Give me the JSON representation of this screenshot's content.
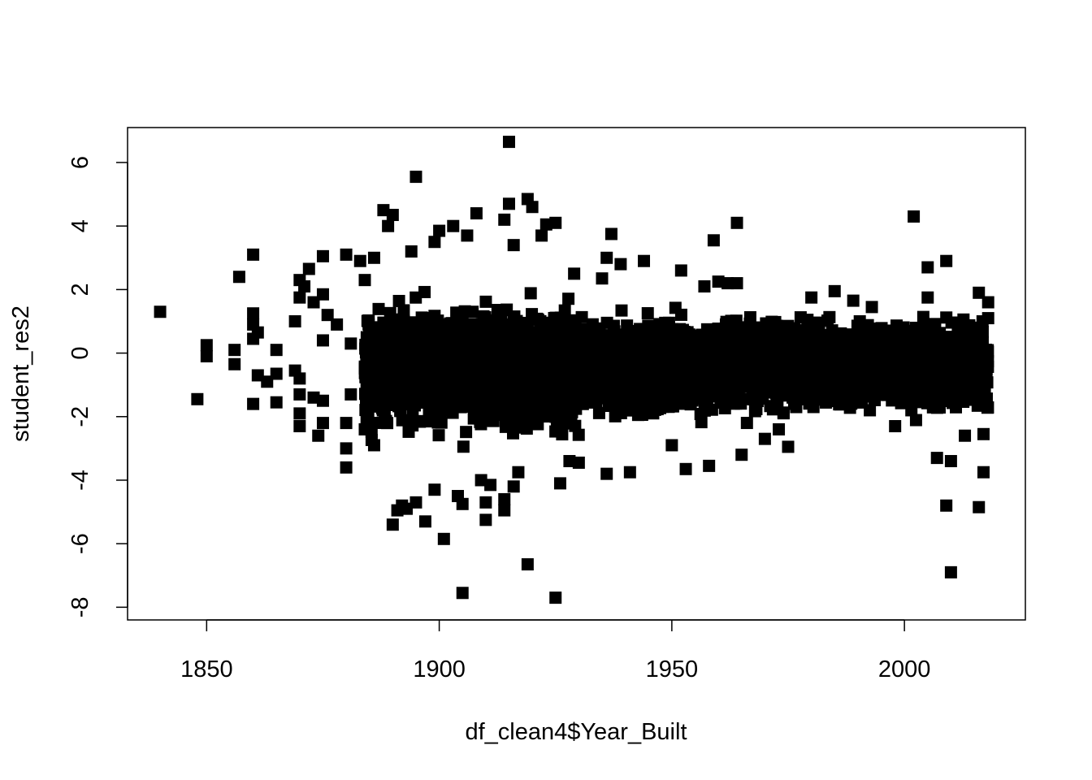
{
  "chart_data": {
    "type": "scatter",
    "xlabel": "df_clean4$Year_Built",
    "ylabel": "student_res2",
    "xlim": [
      1833,
      2026
    ],
    "ylim": [
      -8.4,
      7.1
    ],
    "x_ticks": [
      1850,
      1900,
      1950,
      2000
    ],
    "y_ticks": [
      -8,
      -6,
      -4,
      -2,
      0,
      2,
      4,
      6
    ],
    "marker": "filled-square",
    "marker_color": "#000000",
    "grid": false,
    "legend": "none",
    "points": [
      [
        1840,
        1.3
      ],
      [
        1848,
        -1.45
      ],
      [
        1850,
        0.25
      ],
      [
        1850,
        -0.1
      ],
      [
        1856,
        0.1
      ],
      [
        1856,
        -0.35
      ],
      [
        1857,
        2.4
      ],
      [
        1860,
        3.1
      ],
      [
        1860,
        1.25
      ],
      [
        1860,
        0.9
      ],
      [
        1860,
        0.45
      ],
      [
        1860,
        -1.6
      ],
      [
        1861,
        0.65
      ],
      [
        1861,
        -0.7
      ],
      [
        1863,
        -0.9
      ],
      [
        1865,
        0.1
      ],
      [
        1865,
        -0.65
      ],
      [
        1865,
        -1.55
      ],
      [
        1869,
        1.0
      ],
      [
        1869,
        -0.55
      ],
      [
        1870,
        2.3
      ],
      [
        1870,
        1.75
      ],
      [
        1870,
        -0.8
      ],
      [
        1870,
        -1.3
      ],
      [
        1870,
        -1.9
      ],
      [
        1870,
        -2.3
      ],
      [
        1871,
        2.1
      ],
      [
        1872,
        2.65
      ],
      [
        1873,
        1.6
      ],
      [
        1873,
        -1.4
      ],
      [
        1874,
        -2.6
      ],
      [
        1875,
        3.05
      ],
      [
        1875,
        1.85
      ],
      [
        1875,
        0.4
      ],
      [
        1875,
        -1.5
      ],
      [
        1875,
        -2.2
      ],
      [
        1876,
        1.2
      ],
      [
        1878,
        0.9
      ],
      [
        1880,
        3.1
      ],
      [
        1880,
        -2.2
      ],
      [
        1880,
        -3.0
      ],
      [
        1880,
        -3.6
      ],
      [
        1881,
        0.3
      ],
      [
        1881,
        -1.3
      ],
      [
        1883,
        2.9
      ],
      [
        1884,
        2.3
      ],
      [
        1884,
        -2.4
      ],
      [
        1886,
        3.0
      ],
      [
        1886,
        -2.9
      ],
      [
        1888,
        4.5
      ],
      [
        1889,
        4.0
      ],
      [
        1890,
        4.35
      ],
      [
        1890,
        -5.4
      ],
      [
        1891,
        -4.95
      ],
      [
        1892,
        -4.8
      ],
      [
        1893,
        -4.9
      ],
      [
        1894,
        3.2
      ],
      [
        1895,
        5.55
      ],
      [
        1895,
        -4.7
      ],
      [
        1897,
        -5.3
      ],
      [
        1899,
        3.5
      ],
      [
        1899,
        -4.3
      ],
      [
        1900,
        3.85
      ],
      [
        1901,
        -5.85
      ],
      [
        1903,
        4.0
      ],
      [
        1904,
        -4.5
      ],
      [
        1905,
        -4.75
      ],
      [
        1905,
        -7.55
      ],
      [
        1906,
        3.7
      ],
      [
        1908,
        4.4
      ],
      [
        1909,
        -4.0
      ],
      [
        1910,
        -4.7
      ],
      [
        1910,
        -5.25
      ],
      [
        1911,
        -4.15
      ],
      [
        1914,
        4.2
      ],
      [
        1914,
        -4.6
      ],
      [
        1914,
        -4.95
      ],
      [
        1915,
        6.65
      ],
      [
        1915,
        4.7
      ],
      [
        1916,
        3.4
      ],
      [
        1916,
        -4.2
      ],
      [
        1917,
        -3.75
      ],
      [
        1919,
        4.85
      ],
      [
        1919,
        -6.65
      ],
      [
        1920,
        4.6
      ],
      [
        1922,
        3.7
      ],
      [
        1923,
        4.05
      ],
      [
        1925,
        4.1
      ],
      [
        1925,
        -7.7
      ],
      [
        1926,
        -4.1
      ],
      [
        1928,
        -3.4
      ],
      [
        1929,
        2.5
      ],
      [
        1930,
        -3.45
      ],
      [
        1935,
        2.35
      ],
      [
        1936,
        3.0
      ],
      [
        1936,
        -3.8
      ],
      [
        1937,
        3.75
      ],
      [
        1939,
        2.8
      ],
      [
        1941,
        -3.75
      ],
      [
        1944,
        2.9
      ],
      [
        1950,
        -2.9
      ],
      [
        1952,
        2.6
      ],
      [
        1953,
        -3.65
      ],
      [
        1957,
        2.1
      ],
      [
        1958,
        -3.55
      ],
      [
        1959,
        3.55
      ],
      [
        1960,
        2.25
      ],
      [
        1962,
        2.2
      ],
      [
        1964,
        4.1
      ],
      [
        1964,
        2.2
      ],
      [
        1965,
        -3.2
      ],
      [
        1970,
        -2.7
      ],
      [
        1973,
        -2.4
      ],
      [
        1975,
        -2.95
      ],
      [
        1980,
        1.75
      ],
      [
        1985,
        1.95
      ],
      [
        1986,
        -1.25
      ],
      [
        1989,
        1.65
      ],
      [
        1993,
        1.45
      ],
      [
        1998,
        -2.3
      ],
      [
        2002,
        4.3
      ],
      [
        2005,
        2.7
      ],
      [
        2005,
        1.75
      ],
      [
        2007,
        -3.3
      ],
      [
        2009,
        2.9
      ],
      [
        2009,
        -4.8
      ],
      [
        2010,
        -6.9
      ],
      [
        2010,
        -3.4
      ],
      [
        2013,
        -2.6
      ],
      [
        2016,
        1.9
      ],
      [
        2016,
        -4.85
      ],
      [
        2017,
        -2.55
      ],
      [
        2017,
        -3.75
      ],
      [
        2017,
        -0.75
      ],
      [
        2018,
        1.6
      ],
      [
        2018,
        1.1
      ]
    ]
  }
}
